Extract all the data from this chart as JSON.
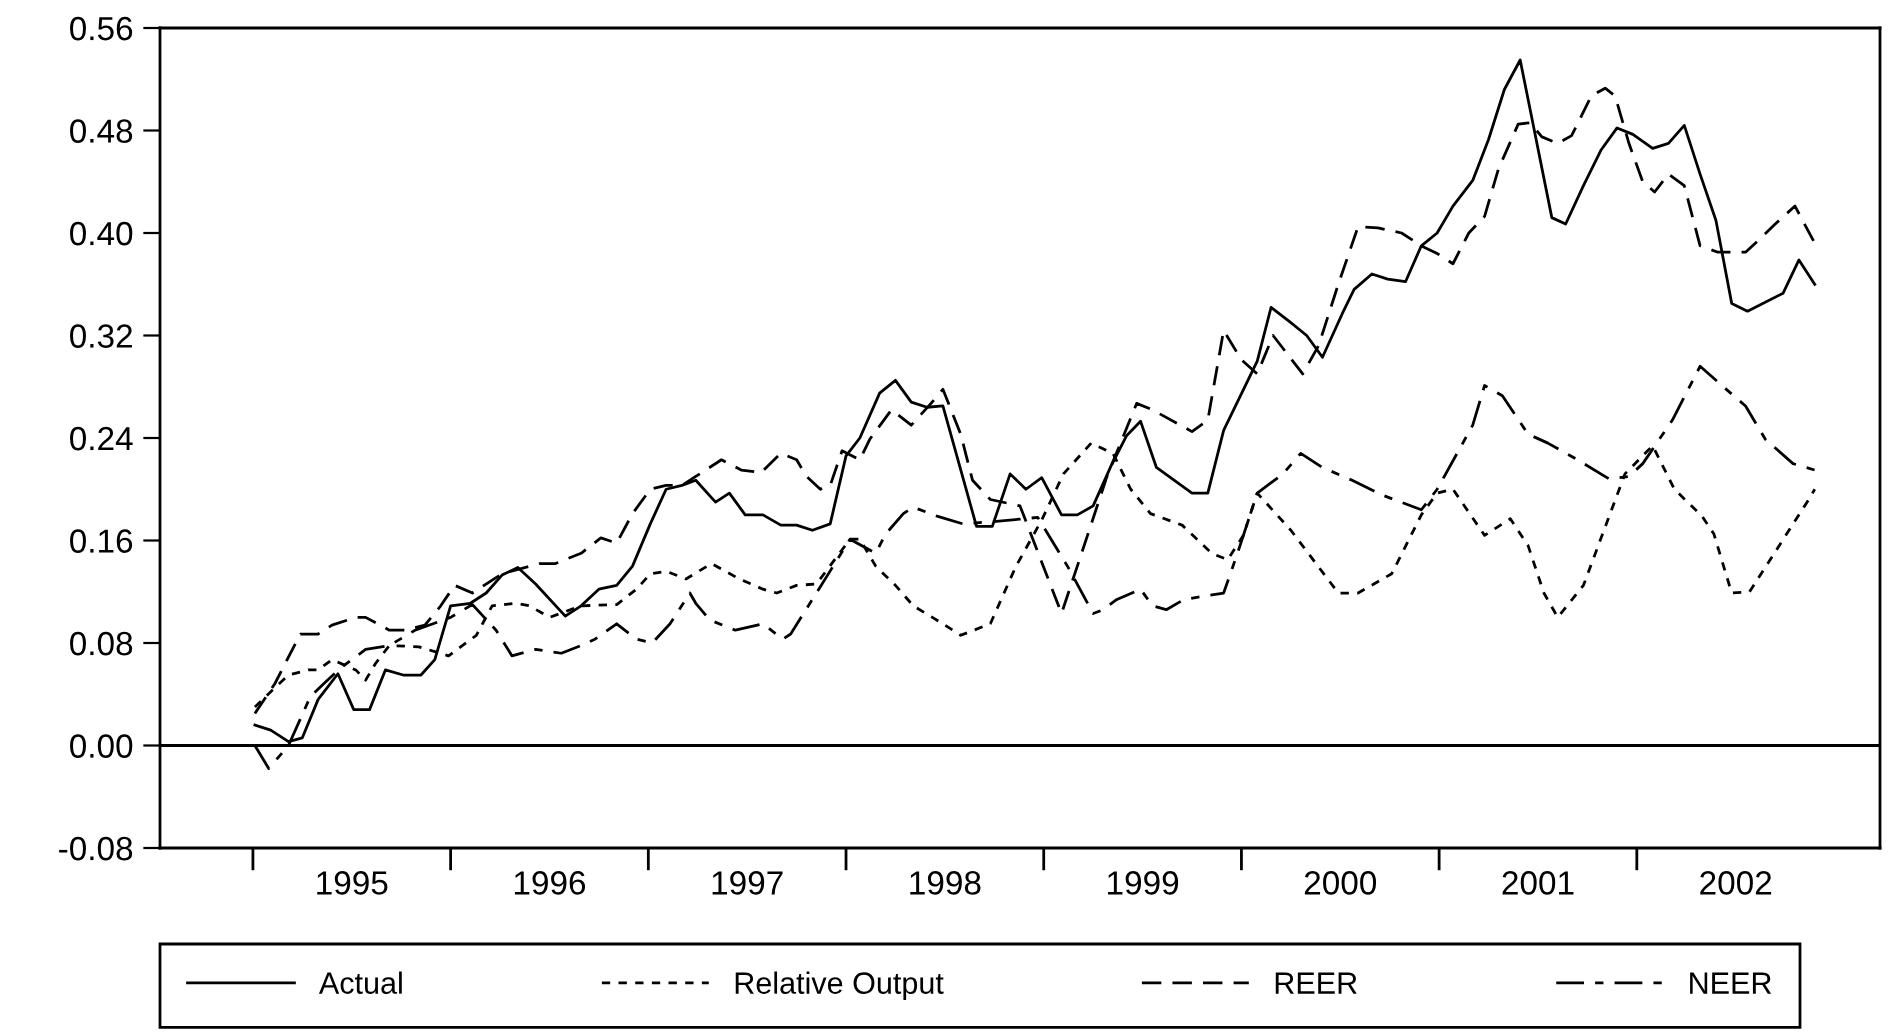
{
  "chart_data": {
    "type": "line",
    "xlim": [
      1994.53,
      2003.23
    ],
    "xticks": [
      {
        "value": 1995,
        "label": null
      },
      {
        "value": 1995.5,
        "label": "1995"
      },
      {
        "value": 1996,
        "label": null
      },
      {
        "value": 1996.5,
        "label": "1996"
      },
      {
        "value": 1997,
        "label": null
      },
      {
        "value": 1997.5,
        "label": "1997"
      },
      {
        "value": 1998,
        "label": null
      },
      {
        "value": 1998.5,
        "label": "1998"
      },
      {
        "value": 1999,
        "label": null
      },
      {
        "value": 1999.5,
        "label": "1999"
      },
      {
        "value": 2000,
        "label": null
      },
      {
        "value": 2000.5,
        "label": "2000"
      },
      {
        "value": 2001,
        "label": null
      },
      {
        "value": 2001.5,
        "label": "2001"
      },
      {
        "value": 2002,
        "label": null
      },
      {
        "value": 2002.5,
        "label": "2002"
      }
    ],
    "ylim": [
      -0.08,
      0.56
    ],
    "yticks": [
      {
        "value": -0.08,
        "label": "-0.08"
      },
      {
        "value": 0,
        "label": "0.00"
      },
      {
        "value": 0.08,
        "label": "0.08"
      },
      {
        "value": 0.16,
        "label": "0.16"
      },
      {
        "value": 0.24,
        "label": "0.24"
      },
      {
        "value": 0.32,
        "label": "0.32"
      },
      {
        "value": 0.4,
        "label": "0.40"
      },
      {
        "value": 0.48,
        "label": "0.48"
      },
      {
        "value": 0.56,
        "label": "0.56"
      }
    ],
    "ref_lines": [
      {
        "axis": "y",
        "value": 0,
        "color": "#000000",
        "line_style": "solid"
      }
    ],
    "grid": false,
    "legend": "bottom",
    "marker": "none",
    "series": [
      {
        "name": "Actual",
        "color": "#000000",
        "line_style": "solid",
        "x": [
          1995.01,
          1995.09,
          1995.18,
          1995.25,
          1995.33,
          1995.43,
          1995.51,
          1995.59,
          1995.67,
          1995.76,
          1995.85,
          1995.92,
          1996.0,
          1996.1,
          1996.18,
          1996.26,
          1996.34,
          1996.43,
          1996.58,
          1996.66,
          1996.75,
          1996.84,
          1996.92,
          1997.01,
          1997.09,
          1997.17,
          1997.24,
          1997.34,
          1997.41,
          1997.49,
          1997.58,
          1997.67,
          1997.75,
          1997.83,
          1997.92,
          1998.0,
          1998.07,
          1998.17,
          1998.25,
          1998.33,
          1998.41,
          1998.49,
          1998.66,
          1998.74,
          1998.83,
          1998.91,
          1998.99,
          1999.09,
          1999.17,
          1999.25,
          1999.34,
          1999.42,
          1999.49,
          1999.57,
          1999.75,
          1999.83,
          1999.91,
          2000.08,
          2000.15,
          2000.25,
          2000.33,
          2000.41,
          2000.51,
          2000.57,
          2000.66,
          2000.74,
          2000.83,
          2000.91,
          2000.99,
          2001.07,
          2001.17,
          2001.25,
          2001.33,
          2001.41,
          2001.57,
          2001.64,
          2001.73,
          2001.82,
          2001.9,
          2001.98,
          2002.08,
          2002.16,
          2002.24,
          2002.32,
          2002.4,
          2002.48,
          2002.56,
          2002.74,
          2002.82,
          2002.9
        ],
        "values": [
          0.016,
          0.012,
          0.003,
          0.006,
          0.036,
          0.056,
          0.028,
          0.028,
          0.059,
          0.055,
          0.055,
          0.067,
          0.109,
          0.111,
          0.119,
          0.133,
          0.139,
          0.126,
          0.101,
          0.109,
          0.122,
          0.125,
          0.14,
          0.173,
          0.2,
          0.203,
          0.207,
          0.19,
          0.197,
          0.18,
          0.18,
          0.172,
          0.172,
          0.168,
          0.173,
          0.226,
          0.24,
          0.275,
          0.285,
          0.268,
          0.264,
          0.265,
          0.171,
          0.171,
          0.212,
          0.2,
          0.209,
          0.18,
          0.18,
          0.187,
          0.218,
          0.242,
          0.253,
          0.217,
          0.197,
          0.197,
          0.246,
          0.3,
          0.342,
          0.33,
          0.32,
          0.303,
          0.337,
          0.356,
          0.368,
          0.364,
          0.362,
          0.39,
          0.4,
          0.421,
          0.441,
          0.473,
          0.512,
          0.535,
          0.412,
          0.407,
          0.437,
          0.465,
          0.482,
          0.477,
          0.466,
          0.47,
          0.484,
          0.446,
          0.41,
          0.345,
          0.339,
          0.353,
          0.379,
          0.36
        ]
      },
      {
        "name": "Relative Output",
        "color": "#000000",
        "line_style": "dotted",
        "x": [
          1995.01,
          1995.11,
          1995.18,
          1995.28,
          1995.33,
          1995.4,
          1995.52,
          1995.57,
          1995.62,
          1995.69,
          1995.84,
          1995.99,
          1996.13,
          1996.21,
          1996.33,
          1996.4,
          1996.5,
          1996.66,
          1996.84,
          1996.94,
          1997.01,
          1997.09,
          1997.19,
          1997.32,
          1997.46,
          1997.58,
          1997.65,
          1997.75,
          1997.85,
          1998.02,
          1998.07,
          1998.15,
          1998.25,
          1998.34,
          1998.49,
          1998.58,
          1998.73,
          1998.86,
          1998.99,
          1999.1,
          1999.24,
          1999.35,
          1999.44,
          1999.54,
          1999.7,
          1999.85,
          1999.93,
          2000.01,
          2000.08,
          2000.25,
          2000.49,
          2000.59,
          2000.76,
          2000.91,
          2000.99,
          2001.07,
          2001.23,
          2001.36,
          2001.45,
          2001.53,
          2001.6,
          2001.73,
          2001.94,
          2002.08,
          2002.19,
          2002.33,
          2002.39,
          2002.48,
          2002.57,
          2002.87,
          2002.9
        ],
        "values": [
          0.03,
          0.045,
          0.055,
          0.059,
          0.059,
          0.067,
          0.059,
          0.051,
          0.064,
          0.078,
          0.077,
          0.07,
          0.086,
          0.109,
          0.111,
          0.109,
          0.1,
          0.109,
          0.11,
          0.122,
          0.134,
          0.136,
          0.13,
          0.142,
          0.13,
          0.122,
          0.119,
          0.125,
          0.126,
          0.161,
          0.161,
          0.14,
          0.125,
          0.109,
          0.095,
          0.086,
          0.095,
          0.14,
          0.176,
          0.212,
          0.236,
          0.228,
          0.2,
          0.181,
          0.172,
          0.15,
          0.145,
          0.164,
          0.197,
          0.168,
          0.119,
          0.119,
          0.134,
          0.18,
          0.197,
          0.2,
          0.164,
          0.177,
          0.156,
          0.119,
          0.1,
          0.125,
          0.212,
          0.234,
          0.2,
          0.179,
          0.165,
          0.119,
          0.12,
          0.192,
          0.2
        ]
      },
      {
        "name": "REER",
        "color": "#000000",
        "line_style": "dashed",
        "x": [
          1995.01,
          1995.11,
          1995.24,
          1995.33,
          1995.4,
          1995.52,
          1995.57,
          1995.69,
          1995.77,
          1995.87,
          1995.95,
          1996.02,
          1996.11,
          1996.26,
          1996.45,
          1996.53,
          1996.66,
          1996.76,
          1996.84,
          1996.92,
          1997.01,
          1997.09,
          1997.17,
          1997.24,
          1997.37,
          1997.47,
          1997.57,
          1997.67,
          1997.75,
          1997.8,
          1997.87,
          1997.92,
          1997.98,
          1998.07,
          1998.12,
          1998.23,
          1998.33,
          1998.43,
          1998.49,
          1998.58,
          1998.64,
          1998.73,
          1998.88,
          1999.09,
          1999.17,
          1999.32,
          1999.47,
          1999.55,
          1999.75,
          1999.83,
          1999.91,
          2000.0,
          2000.08,
          2000.16,
          2000.26,
          2000.31,
          2000.39,
          2000.49,
          2000.59,
          2000.69,
          2000.81,
          2000.91,
          2000.99,
          2001.07,
          2001.15,
          2001.23,
          2001.3,
          2001.4,
          2001.46,
          2001.52,
          2001.6,
          2001.67,
          2001.77,
          2001.84,
          2001.89,
          2001.96,
          2002.03,
          2002.09,
          2002.16,
          2002.24,
          2002.32,
          2002.41,
          2002.55,
          2002.62,
          2002.7,
          2002.8,
          2002.9
        ],
        "values": [
          0.025,
          0.048,
          0.087,
          0.087,
          0.094,
          0.1,
          0.1,
          0.09,
          0.09,
          0.094,
          0.109,
          0.125,
          0.119,
          0.134,
          0.142,
          0.142,
          0.15,
          0.162,
          0.158,
          0.181,
          0.2,
          0.203,
          0.203,
          0.21,
          0.223,
          0.215,
          0.213,
          0.228,
          0.223,
          0.21,
          0.2,
          0.203,
          0.23,
          0.223,
          0.239,
          0.262,
          0.25,
          0.267,
          0.278,
          0.243,
          0.207,
          0.192,
          0.187,
          0.103,
          0.14,
          0.21,
          0.267,
          0.262,
          0.245,
          0.254,
          0.324,
          0.301,
          0.29,
          0.32,
          0.3,
          0.29,
          0.312,
          0.36,
          0.405,
          0.404,
          0.4,
          0.39,
          0.384,
          0.376,
          0.4,
          0.413,
          0.45,
          0.485,
          0.486,
          0.475,
          0.47,
          0.476,
          0.507,
          0.513,
          0.507,
          0.47,
          0.44,
          0.432,
          0.446,
          0.437,
          0.39,
          0.385,
          0.385,
          0.395,
          0.407,
          0.421,
          0.392
        ]
      },
      {
        "name": "NEER",
        "color": "#000000",
        "line_style": "dashdot",
        "x": [
          1995.01,
          1995.08,
          1995.18,
          1995.29,
          1995.37,
          1995.44,
          1995.57,
          1995.69,
          1995.82,
          1996.0,
          1996.11,
          1996.23,
          1996.31,
          1996.43,
          1996.56,
          1996.66,
          1996.73,
          1996.84,
          1996.94,
          1997.02,
          1997.11,
          1997.21,
          1997.24,
          1997.31,
          1997.44,
          1997.58,
          1997.68,
          1997.72,
          1997.85,
          1998.02,
          1998.15,
          1998.2,
          1998.29,
          1998.34,
          1998.46,
          1998.59,
          1998.76,
          1998.97,
          1999.12,
          1999.25,
          1999.3,
          1999.37,
          1999.49,
          1999.55,
          1999.62,
          1999.71,
          1999.91,
          1999.98,
          2000.08,
          2000.21,
          2000.3,
          2000.41,
          2000.56,
          2000.72,
          2000.91,
          2000.99,
          2001.17,
          2001.23,
          2001.32,
          2001.45,
          2001.55,
          2001.7,
          2001.86,
          2001.96,
          2002.03,
          2002.18,
          2002.32,
          2002.43,
          2002.55,
          2002.65,
          2002.79,
          2002.9
        ],
        "values": [
          0.0,
          -0.018,
          0.0,
          0.038,
          0.05,
          0.06,
          0.075,
          0.078,
          0.09,
          0.1,
          0.11,
          0.09,
          0.07,
          0.075,
          0.072,
          0.078,
          0.083,
          0.095,
          0.083,
          0.08,
          0.095,
          0.119,
          0.111,
          0.098,
          0.09,
          0.095,
          0.083,
          0.087,
          0.119,
          0.161,
          0.15,
          0.165,
          0.181,
          0.186,
          0.179,
          0.173,
          0.175,
          0.178,
          0.14,
          0.103,
          0.106,
          0.114,
          0.122,
          0.109,
          0.106,
          0.114,
          0.119,
          0.15,
          0.197,
          0.212,
          0.228,
          0.217,
          0.207,
          0.195,
          0.184,
          0.2,
          0.25,
          0.281,
          0.273,
          0.243,
          0.236,
          0.223,
          0.208,
          0.21,
          0.22,
          0.254,
          0.296,
          0.281,
          0.265,
          0.239,
          0.22,
          0.215
        ]
      }
    ]
  }
}
